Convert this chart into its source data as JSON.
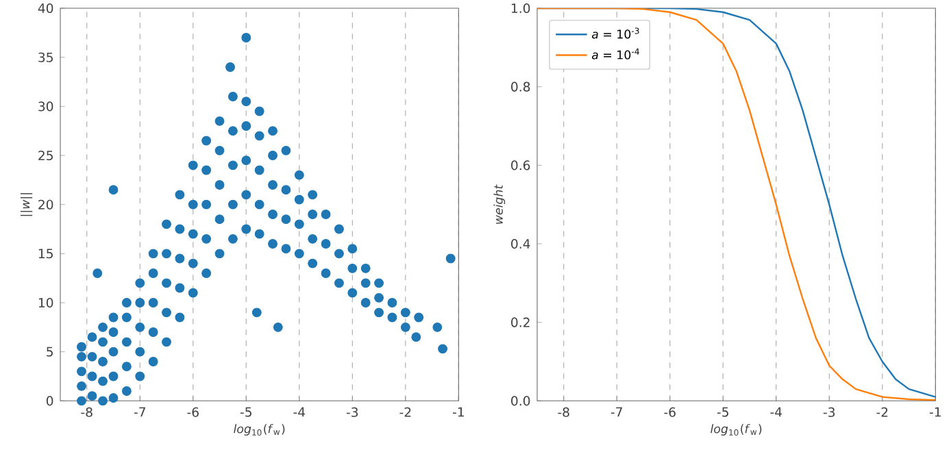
{
  "chart_data": [
    {
      "type": "scatter",
      "xlabel": "*log*$_{10}$(*f*$_{w}$)",
      "ylabel": "||*w*||",
      "xlim": [
        -8.5,
        -1
      ],
      "xticks": [
        -8,
        -7,
        -6,
        -5,
        -4,
        -3,
        -2,
        -1
      ],
      "ylim": [
        0,
        40
      ],
      "yticks": [
        0,
        5,
        10,
        15,
        20,
        25,
        30,
        35,
        40
      ],
      "grid": "x",
      "marker": "circle",
      "series": [
        {
          "color": "#1f77b4",
          "x": [
            -8.1,
            -8.1,
            -8.1,
            -8.1,
            -8.1,
            -7.9,
            -7.9,
            -7.9,
            -7.9,
            -7.7,
            -7.7,
            -7.7,
            -7.7,
            -7.7,
            -7.5,
            -7.5,
            -7.5,
            -7.5,
            -7.5,
            -7.25,
            -7.25,
            -7.25,
            -7.25,
            -7.25,
            -7,
            -7,
            -7,
            -7,
            -7,
            -6.75,
            -6.75,
            -6.75,
            -6.75,
            -6.75,
            -6.5,
            -6.5,
            -6.5,
            -6.5,
            -6.5,
            -6.25,
            -6.25,
            -6.25,
            -6.25,
            -6.25,
            -6,
            -6,
            -6,
            -6,
            -6,
            -5.75,
            -5.75,
            -5.75,
            -5.75,
            -5.75,
            -5.5,
            -5.5,
            -5.5,
            -5.5,
            -5.5,
            -5.25,
            -5.25,
            -5.25,
            -5.25,
            -5.25,
            -5,
            -5,
            -5,
            -5,
            -5,
            -4.75,
            -4.75,
            -4.75,
            -4.75,
            -4.75,
            -4.5,
            -4.5,
            -4.5,
            -4.5,
            -4.5,
            -4.25,
            -4.25,
            -4.25,
            -4.25,
            -4,
            -4,
            -4,
            -4,
            -3.75,
            -3.75,
            -3.75,
            -3.75,
            -3.5,
            -3.5,
            -3.5,
            -3.25,
            -3.25,
            -3.25,
            -3,
            -3,
            -3,
            -2.75,
            -2.75,
            -2.75,
            -2.5,
            -2.5,
            -2.5,
            -2.25,
            -2.25,
            -2,
            -2,
            -1.75,
            -1.15,
            -1.3,
            -1.4,
            -1.8,
            -7.5,
            -7.8,
            -5,
            -5.3,
            -4.4,
            -4.8
          ],
          "values": [
            0,
            1.5,
            3,
            4.5,
            5.5,
            0.5,
            2.5,
            4.5,
            6.5,
            0,
            2,
            4,
            6,
            7.5,
            0.3,
            2.5,
            5,
            7,
            8.5,
            1,
            3.5,
            6,
            8.5,
            10,
            2.5,
            5,
            7.5,
            10,
            12,
            4,
            7,
            10,
            13,
            15,
            6,
            9,
            12,
            15,
            18,
            8.5,
            11.5,
            14.5,
            17.5,
            21,
            11,
            14,
            17,
            20,
            24,
            13,
            16.5,
            20,
            23.5,
            26.5,
            15,
            18.5,
            22,
            25.5,
            28.5,
            16.5,
            20,
            24,
            27.5,
            31,
            17.5,
            21,
            24.5,
            28,
            30.5,
            17,
            20,
            23.5,
            27,
            29.5,
            16,
            19,
            22,
            25,
            27.5,
            15.5,
            18.5,
            21.5,
            25.5,
            15,
            18,
            20.5,
            23,
            14,
            16.5,
            19,
            21,
            13,
            16,
            19,
            12,
            15,
            17.5,
            11,
            13.5,
            15.5,
            10,
            12,
            13.5,
            9,
            10.5,
            12,
            8.5,
            10,
            7.5,
            9,
            8.5,
            14.5,
            5.3,
            7.5,
            6.5,
            21.5,
            13,
            37,
            34,
            7.5,
            9
          ]
        }
      ]
    },
    {
      "type": "line",
      "xlabel": "*log*$_{10}$(*f*$_{w}$)",
      "ylabel": "*weight*",
      "xlim": [
        -8.5,
        -1
      ],
      "xticks": [
        -8,
        -7,
        -6,
        -5,
        -4,
        -3,
        -2,
        -1
      ],
      "ylim": [
        0,
        1
      ],
      "yticks": [
        {
          "value": 0,
          "label": "0.0"
        },
        {
          "value": 0.2,
          "label": "0.2"
        },
        {
          "value": 0.4,
          "label": "0.4"
        },
        {
          "value": 0.6,
          "label": "0.6"
        },
        {
          "value": 0.8,
          "label": "0.8"
        },
        {
          "value": 1,
          "label": "1.0"
        }
      ],
      "grid": "x",
      "legend": "top left",
      "line_style": "solid",
      "series": [
        {
          "name": "*a* = 10$^{-3}$",
          "color": "#1f77b4",
          "x": [
            -8.5,
            -6,
            -5.5,
            -5,
            -4.5,
            -4,
            -3.75,
            -3.5,
            -3.25,
            -3,
            -2.75,
            -2.5,
            -2.25,
            -2,
            -1.75,
            -1.5,
            -1
          ],
          "values": [
            1,
            1,
            0.998,
            0.99,
            0.97,
            0.91,
            0.84,
            0.74,
            0.62,
            0.5,
            0.37,
            0.26,
            0.16,
            0.1,
            0.055,
            0.03,
            0.01
          ]
        },
        {
          "name": "*a* = 10$^{-4}$",
          "color": "#ff7f0e",
          "x": [
            -8.5,
            -7,
            -6.5,
            -6,
            -5.5,
            -5,
            -4.75,
            -4.5,
            -4.25,
            -4,
            -3.75,
            -3.5,
            -3.25,
            -3,
            -2.75,
            -2.5,
            -2,
            -1.5,
            -1
          ],
          "values": [
            1,
            1,
            0.998,
            0.99,
            0.97,
            0.91,
            0.84,
            0.74,
            0.62,
            0.5,
            0.37,
            0.26,
            0.16,
            0.09,
            0.055,
            0.03,
            0.01,
            0.004,
            0.002
          ]
        }
      ]
    }
  ]
}
